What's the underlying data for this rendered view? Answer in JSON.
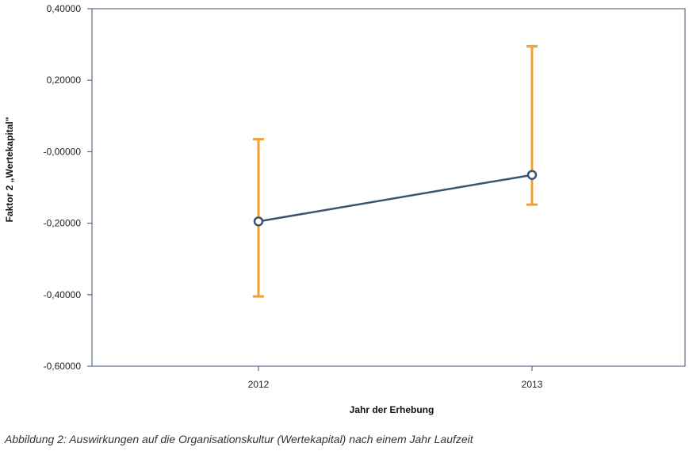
{
  "chart_data": {
    "type": "line",
    "categories": [
      "2012",
      "2013"
    ],
    "series": [
      {
        "values": [
          -0.195,
          -0.065
        ],
        "error_bars": [
          {
            "low": -0.405,
            "high": 0.035
          },
          {
            "low": -0.148,
            "high": 0.295
          }
        ]
      }
    ],
    "xlabel": "Jahr der Erhebung",
    "ylabel": "Faktor 2 „Wertekapital\"",
    "ylim": [
      -0.6,
      0.4
    ],
    "yticks": [
      {
        "value": 0.4,
        "label": "0,40000"
      },
      {
        "value": 0.2,
        "label": "0,20000"
      },
      {
        "value": 0.0,
        "label": "-0,00000"
      },
      {
        "value": -0.2,
        "label": "-0,20000"
      },
      {
        "value": -0.4,
        "label": "-0,40000"
      },
      {
        "value": -0.6,
        "label": "-0,60000"
      }
    ],
    "grid": false,
    "colors": {
      "line": "#3d5273",
      "marker": "#3d5273",
      "error_bar": "#f0a030",
      "axis": "#3d5273"
    }
  },
  "caption": "Abbildung 2: Auswirkungen auf die Organisationskultur (Wertekapital) nach einem Jahr Laufzeit"
}
